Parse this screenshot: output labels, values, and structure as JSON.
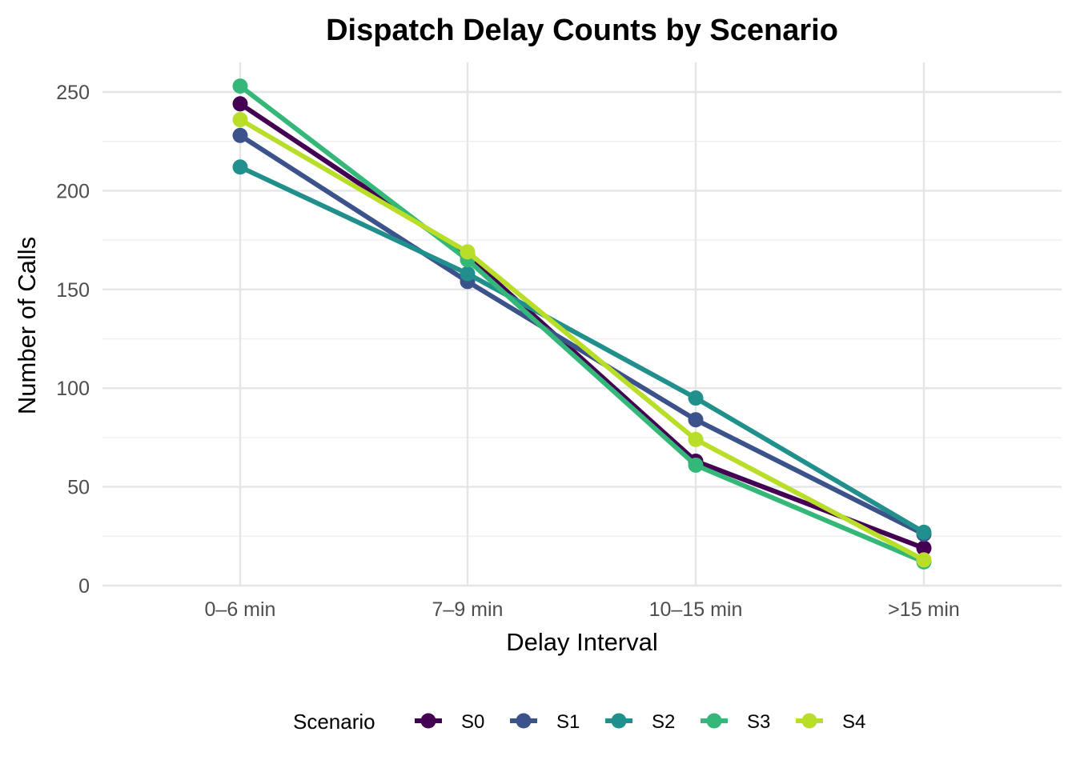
{
  "chart_data": {
    "type": "line",
    "title": "Dispatch Delay Counts by Scenario",
    "xlabel": "Delay Interval",
    "ylabel": "Number of Calls",
    "categories": [
      "0–6 min",
      "7–9 min",
      "10–15 min",
      ">15 min"
    ],
    "ylim": [
      0,
      265
    ],
    "yticks": [
      0,
      50,
      100,
      150,
      200,
      250
    ],
    "grid": true,
    "legend": {
      "title": "Scenario",
      "position": "bottom"
    },
    "series": [
      {
        "name": "S0",
        "color": "#440154",
        "values": [
          244,
          167,
          63,
          19
        ]
      },
      {
        "name": "S1",
        "color": "#3b528b",
        "values": [
          228,
          154,
          84,
          26
        ]
      },
      {
        "name": "S2",
        "color": "#21908c",
        "values": [
          212,
          158,
          95,
          27
        ]
      },
      {
        "name": "S3",
        "color": "#35b779",
        "values": [
          253,
          165,
          61,
          12
        ]
      },
      {
        "name": "S4",
        "color": "#b8de29",
        "values": [
          236,
          169,
          74,
          13
        ]
      }
    ]
  }
}
